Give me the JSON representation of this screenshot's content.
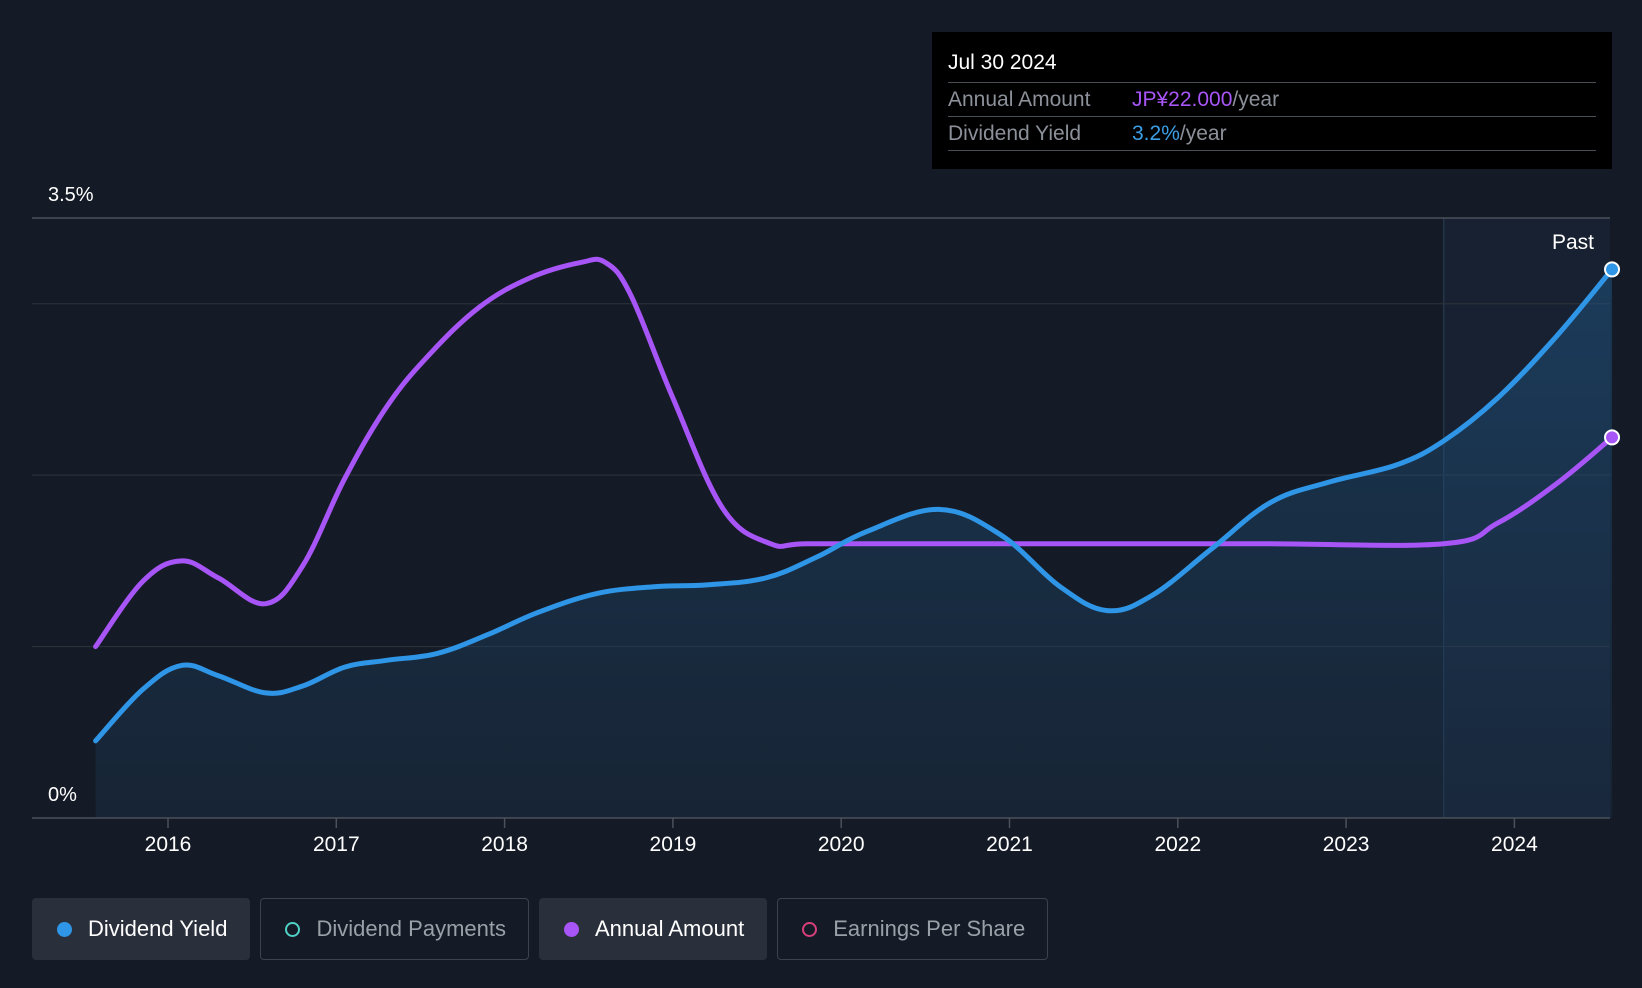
{
  "tooltip": {
    "date": "Jul 30 2024",
    "rows": [
      {
        "label": "Annual Amount",
        "value": "JP¥22.000",
        "unit": "/year",
        "color": "#a855f7"
      },
      {
        "label": "Dividend Yield",
        "value": "3.2%",
        "unit": "/year",
        "color": "#3b9ee6"
      }
    ]
  },
  "past_label": "Past",
  "legend": [
    {
      "label": "Dividend Yield",
      "color": "#2f95e6",
      "active": true
    },
    {
      "label": "Dividend Payments",
      "color": "#4fd1c5",
      "active": false
    },
    {
      "label": "Annual Amount",
      "color": "#a855f7",
      "active": true
    },
    {
      "label": "Earnings Per Share",
      "color": "#d63f7a",
      "active": false
    }
  ],
  "chart_data": {
    "type": "line",
    "title": "",
    "xlabel": "",
    "ylabel": "",
    "x_ticks": [
      "2016",
      "2017",
      "2018",
      "2019",
      "2020",
      "2021",
      "2022",
      "2023",
      "2024"
    ],
    "y_tick_labels": {
      "top": "3.5%",
      "bottom": "0%"
    },
    "ylim": [
      0,
      3.5
    ],
    "xlim": [
      2015.57,
      2024.58
    ],
    "past_region_start": 2023.58,
    "series": [
      {
        "name": "Dividend Yield",
        "color": "#2f95e6",
        "fill": true,
        "x": [
          2015.57,
          2015.85,
          2016.08,
          2016.3,
          2016.58,
          2016.8,
          2017.05,
          2017.3,
          2017.6,
          2017.9,
          2018.2,
          2018.55,
          2018.9,
          2019.2,
          2019.55,
          2019.85,
          2020.15,
          2020.58,
          2020.95,
          2021.3,
          2021.58,
          2021.85,
          2022.2,
          2022.55,
          2022.9,
          2023.3,
          2023.58,
          2023.9,
          2024.25,
          2024.58
        ],
        "values": [
          0.45,
          0.75,
          0.89,
          0.83,
          0.73,
          0.77,
          0.88,
          0.92,
          0.96,
          1.07,
          1.2,
          1.31,
          1.35,
          1.36,
          1.4,
          1.52,
          1.67,
          1.8,
          1.65,
          1.35,
          1.21,
          1.3,
          1.57,
          1.84,
          1.96,
          2.06,
          2.2,
          2.45,
          2.81,
          3.2
        ]
      },
      {
        "name": "Annual Amount",
        "color": "#a855f7",
        "fill": false,
        "x": [
          2015.57,
          2015.85,
          2016.08,
          2016.3,
          2016.58,
          2016.8,
          2017.05,
          2017.3,
          2017.55,
          2017.85,
          2018.15,
          2018.45,
          2018.6,
          2018.75,
          2019.0,
          2019.3,
          2019.58,
          2019.8,
          2020.5,
          2021.5,
          2022.5,
          2023.58,
          2023.9,
          2024.25,
          2024.58
        ],
        "values": [
          1.0,
          1.38,
          1.5,
          1.4,
          1.25,
          1.47,
          1.98,
          2.4,
          2.7,
          2.98,
          3.15,
          3.24,
          3.24,
          3.05,
          2.45,
          1.8,
          1.6,
          1.6,
          1.6,
          1.6,
          1.6,
          1.6,
          1.72,
          1.95,
          2.22
        ]
      }
    ]
  }
}
